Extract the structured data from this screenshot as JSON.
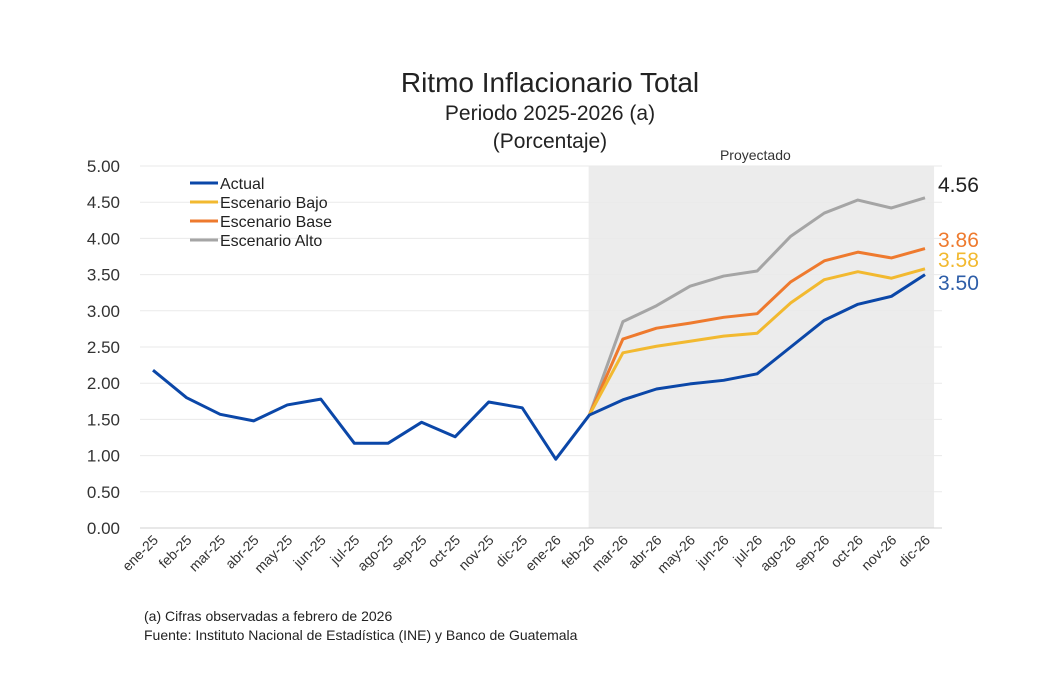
{
  "chart_data": {
    "type": "line",
    "title": "Ritmo Inflacionario Total",
    "subtitle": "Periodo 2025-2026 (a)",
    "unit_label": "(Porcentaje)",
    "shaded_region_label": "Proyectado",
    "shaded_region": [
      "feb-26",
      "dic-26"
    ],
    "ylim": [
      0,
      5
    ],
    "yticks": [
      "0.00",
      "0.50",
      "1.00",
      "1.50",
      "2.00",
      "2.50",
      "3.00",
      "3.50",
      "4.00",
      "4.50",
      "5.00"
    ],
    "grid": true,
    "legend_position": "top-left",
    "categories": [
      "ene-25",
      "feb-25",
      "mar-25",
      "abr-25",
      "may-25",
      "jun-25",
      "jul-25",
      "ago-25",
      "sep-25",
      "oct-25",
      "nov-25",
      "dic-25",
      "ene-26",
      "feb-26",
      "mar-26",
      "abr-26",
      "may-26",
      "jun-26",
      "jul-26",
      "ago-26",
      "sep-26",
      "oct-26",
      "nov-26",
      "dic-26"
    ],
    "series": [
      {
        "name": "Actual",
        "color": "#0b47a8",
        "values": [
          2.18,
          1.8,
          1.57,
          1.48,
          1.7,
          1.78,
          1.17,
          1.17,
          1.46,
          1.26,
          1.74,
          1.66,
          0.95,
          1.56,
          1.77,
          1.92,
          1.99,
          2.04,
          2.13,
          2.5,
          2.87,
          3.09,
          3.2,
          3.5
        ],
        "end_label": "3.50",
        "end_label_color": "#2e5ea8"
      },
      {
        "name": "Escenario Bajo",
        "color": "#f2b930",
        "values": [
          null,
          null,
          null,
          null,
          null,
          null,
          null,
          null,
          null,
          null,
          null,
          null,
          null,
          1.56,
          2.42,
          2.51,
          2.58,
          2.65,
          2.69,
          3.11,
          3.43,
          3.54,
          3.45,
          3.58
        ],
        "end_label": "3.58",
        "end_label_color": "#f2b930"
      },
      {
        "name": "Escenario Base",
        "color": "#ee7a2e",
        "values": [
          null,
          null,
          null,
          null,
          null,
          null,
          null,
          null,
          null,
          null,
          null,
          null,
          null,
          1.56,
          2.61,
          2.76,
          2.83,
          2.91,
          2.96,
          3.4,
          3.69,
          3.81,
          3.73,
          3.86
        ],
        "end_label": "3.86",
        "end_label_color": "#ee7a2e"
      },
      {
        "name": "Escenario Alto",
        "color": "#a5a5a5",
        "values": [
          null,
          null,
          null,
          null,
          null,
          null,
          null,
          null,
          null,
          null,
          null,
          null,
          null,
          1.56,
          2.85,
          3.07,
          3.34,
          3.48,
          3.55,
          4.03,
          4.35,
          4.53,
          4.42,
          4.56
        ],
        "end_label": "4.56",
        "end_label_color": "#222222"
      }
    ]
  },
  "footnotes": {
    "note": "(a) Cifras observadas a febrero de 2026",
    "source": "Fuente: Instituto Nacional de Estadística (INE) y Banco de Guatemala"
  }
}
